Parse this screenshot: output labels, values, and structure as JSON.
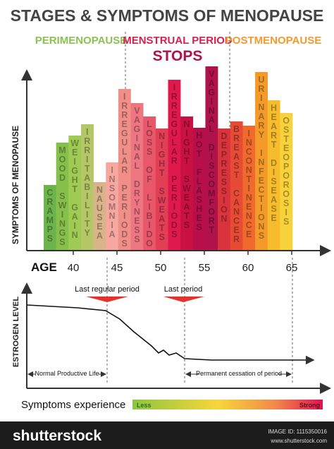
{
  "header": {
    "title": "STAGES & SYMPTOMS OF MENOPAUSE",
    "phases": [
      "PERIMENOPAUSE",
      "MENSTRUAL PERIOD",
      "STOPS",
      "POSTMENOPAUSE"
    ]
  },
  "symptoms_axis_label": "SYMPTOMS OF MENOPAUSE",
  "symptoms": [
    "CRAMPS",
    "MOOD SWINGS",
    "WEIGHT GAIN",
    "IRRITABILITY",
    "NAUSEA",
    "INSOMNIA",
    "IRREGULAR PERIODS",
    "VAGINAL DRYNESS",
    "LOSS OF LIBIDO",
    "NIGHT SWEATS",
    "IRREGULAR PERIODS",
    "NIGHT SWEATS",
    "HOT FLASHES",
    "VAGINAL DISCOMFORT",
    "DEPRESSION",
    "BREAST CANCER",
    "INCONTINENCE",
    "URINARY INFECTIONS",
    "HEART DISEASE",
    "OSTEOPOROSIS"
  ],
  "age": {
    "label": "AGE",
    "ticks": [
      40,
      45,
      50,
      55,
      60,
      65
    ]
  },
  "estrogen": {
    "axis_label": "ESTROGEN LEVEL",
    "markers": [
      "Last regular period",
      "Last period"
    ],
    "spans": [
      "Normal Productive Life",
      "Permanent cessation of period"
    ]
  },
  "legend": {
    "title": "Symptoms experience",
    "low": "Less",
    "high": "Strong"
  },
  "footer": {
    "brand": "shutterstock",
    "image_id": "IMAGE ID: 1115350016",
    "url": "www.shutterstock.com"
  }
}
